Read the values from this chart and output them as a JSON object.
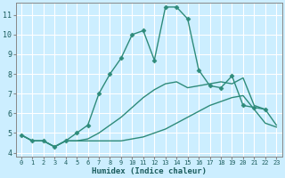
{
  "xlabel": "Humidex (Indice chaleur)",
  "bg_color": "#cceeff",
  "grid_color": "#ffffff",
  "line_color": "#2e8b7a",
  "xlim": [
    -0.5,
    23.5
  ],
  "ylim": [
    3.8,
    11.6
  ],
  "xticks": [
    0,
    1,
    2,
    3,
    4,
    5,
    6,
    7,
    8,
    9,
    10,
    11,
    12,
    13,
    14,
    15,
    16,
    17,
    18,
    19,
    20,
    21,
    22,
    23
  ],
  "yticks": [
    4,
    5,
    6,
    7,
    8,
    9,
    10,
    11
  ],
  "lines": [
    {
      "x": [
        0,
        1,
        2,
        3,
        4,
        5,
        6,
        7,
        8,
        9,
        10,
        11,
        12,
        13,
        14,
        15,
        16,
        17,
        18,
        19,
        20,
        21,
        22,
        23
      ],
      "y": [
        4.9,
        4.6,
        4.6,
        4.3,
        4.6,
        4.6,
        4.6,
        4.6,
        4.6,
        4.6,
        4.7,
        4.8,
        5.0,
        5.2,
        5.5,
        5.8,
        6.1,
        6.4,
        6.6,
        6.8,
        6.9,
        6.2,
        5.5,
        5.3
      ],
      "marker": false,
      "linewidth": 1.0
    },
    {
      "x": [
        0,
        1,
        2,
        3,
        4,
        5,
        6,
        7,
        8,
        9,
        10,
        11,
        12,
        13,
        14,
        15,
        16,
        17,
        18,
        19,
        20,
        21,
        22,
        23
      ],
      "y": [
        4.9,
        4.6,
        4.6,
        4.3,
        4.6,
        4.6,
        4.7,
        5.0,
        5.4,
        5.8,
        6.3,
        6.8,
        7.2,
        7.5,
        7.6,
        7.3,
        7.4,
        7.5,
        7.6,
        7.5,
        7.8,
        6.4,
        6.2,
        5.4
      ],
      "marker": false,
      "linewidth": 1.0
    },
    {
      "x": [
        0,
        1,
        2,
        3,
        4,
        5,
        6,
        7,
        8,
        9,
        10,
        11,
        12,
        13,
        14,
        15,
        16,
        17,
        18,
        19,
        20,
        21,
        22
      ],
      "y": [
        4.9,
        4.6,
        4.6,
        4.3,
        4.6,
        5.0,
        5.4,
        7.0,
        8.0,
        8.8,
        10.0,
        10.2,
        8.7,
        11.4,
        11.4,
        10.8,
        8.2,
        7.4,
        7.3,
        7.9,
        6.4,
        6.3,
        6.2
      ],
      "marker": true,
      "linewidth": 1.0
    }
  ]
}
